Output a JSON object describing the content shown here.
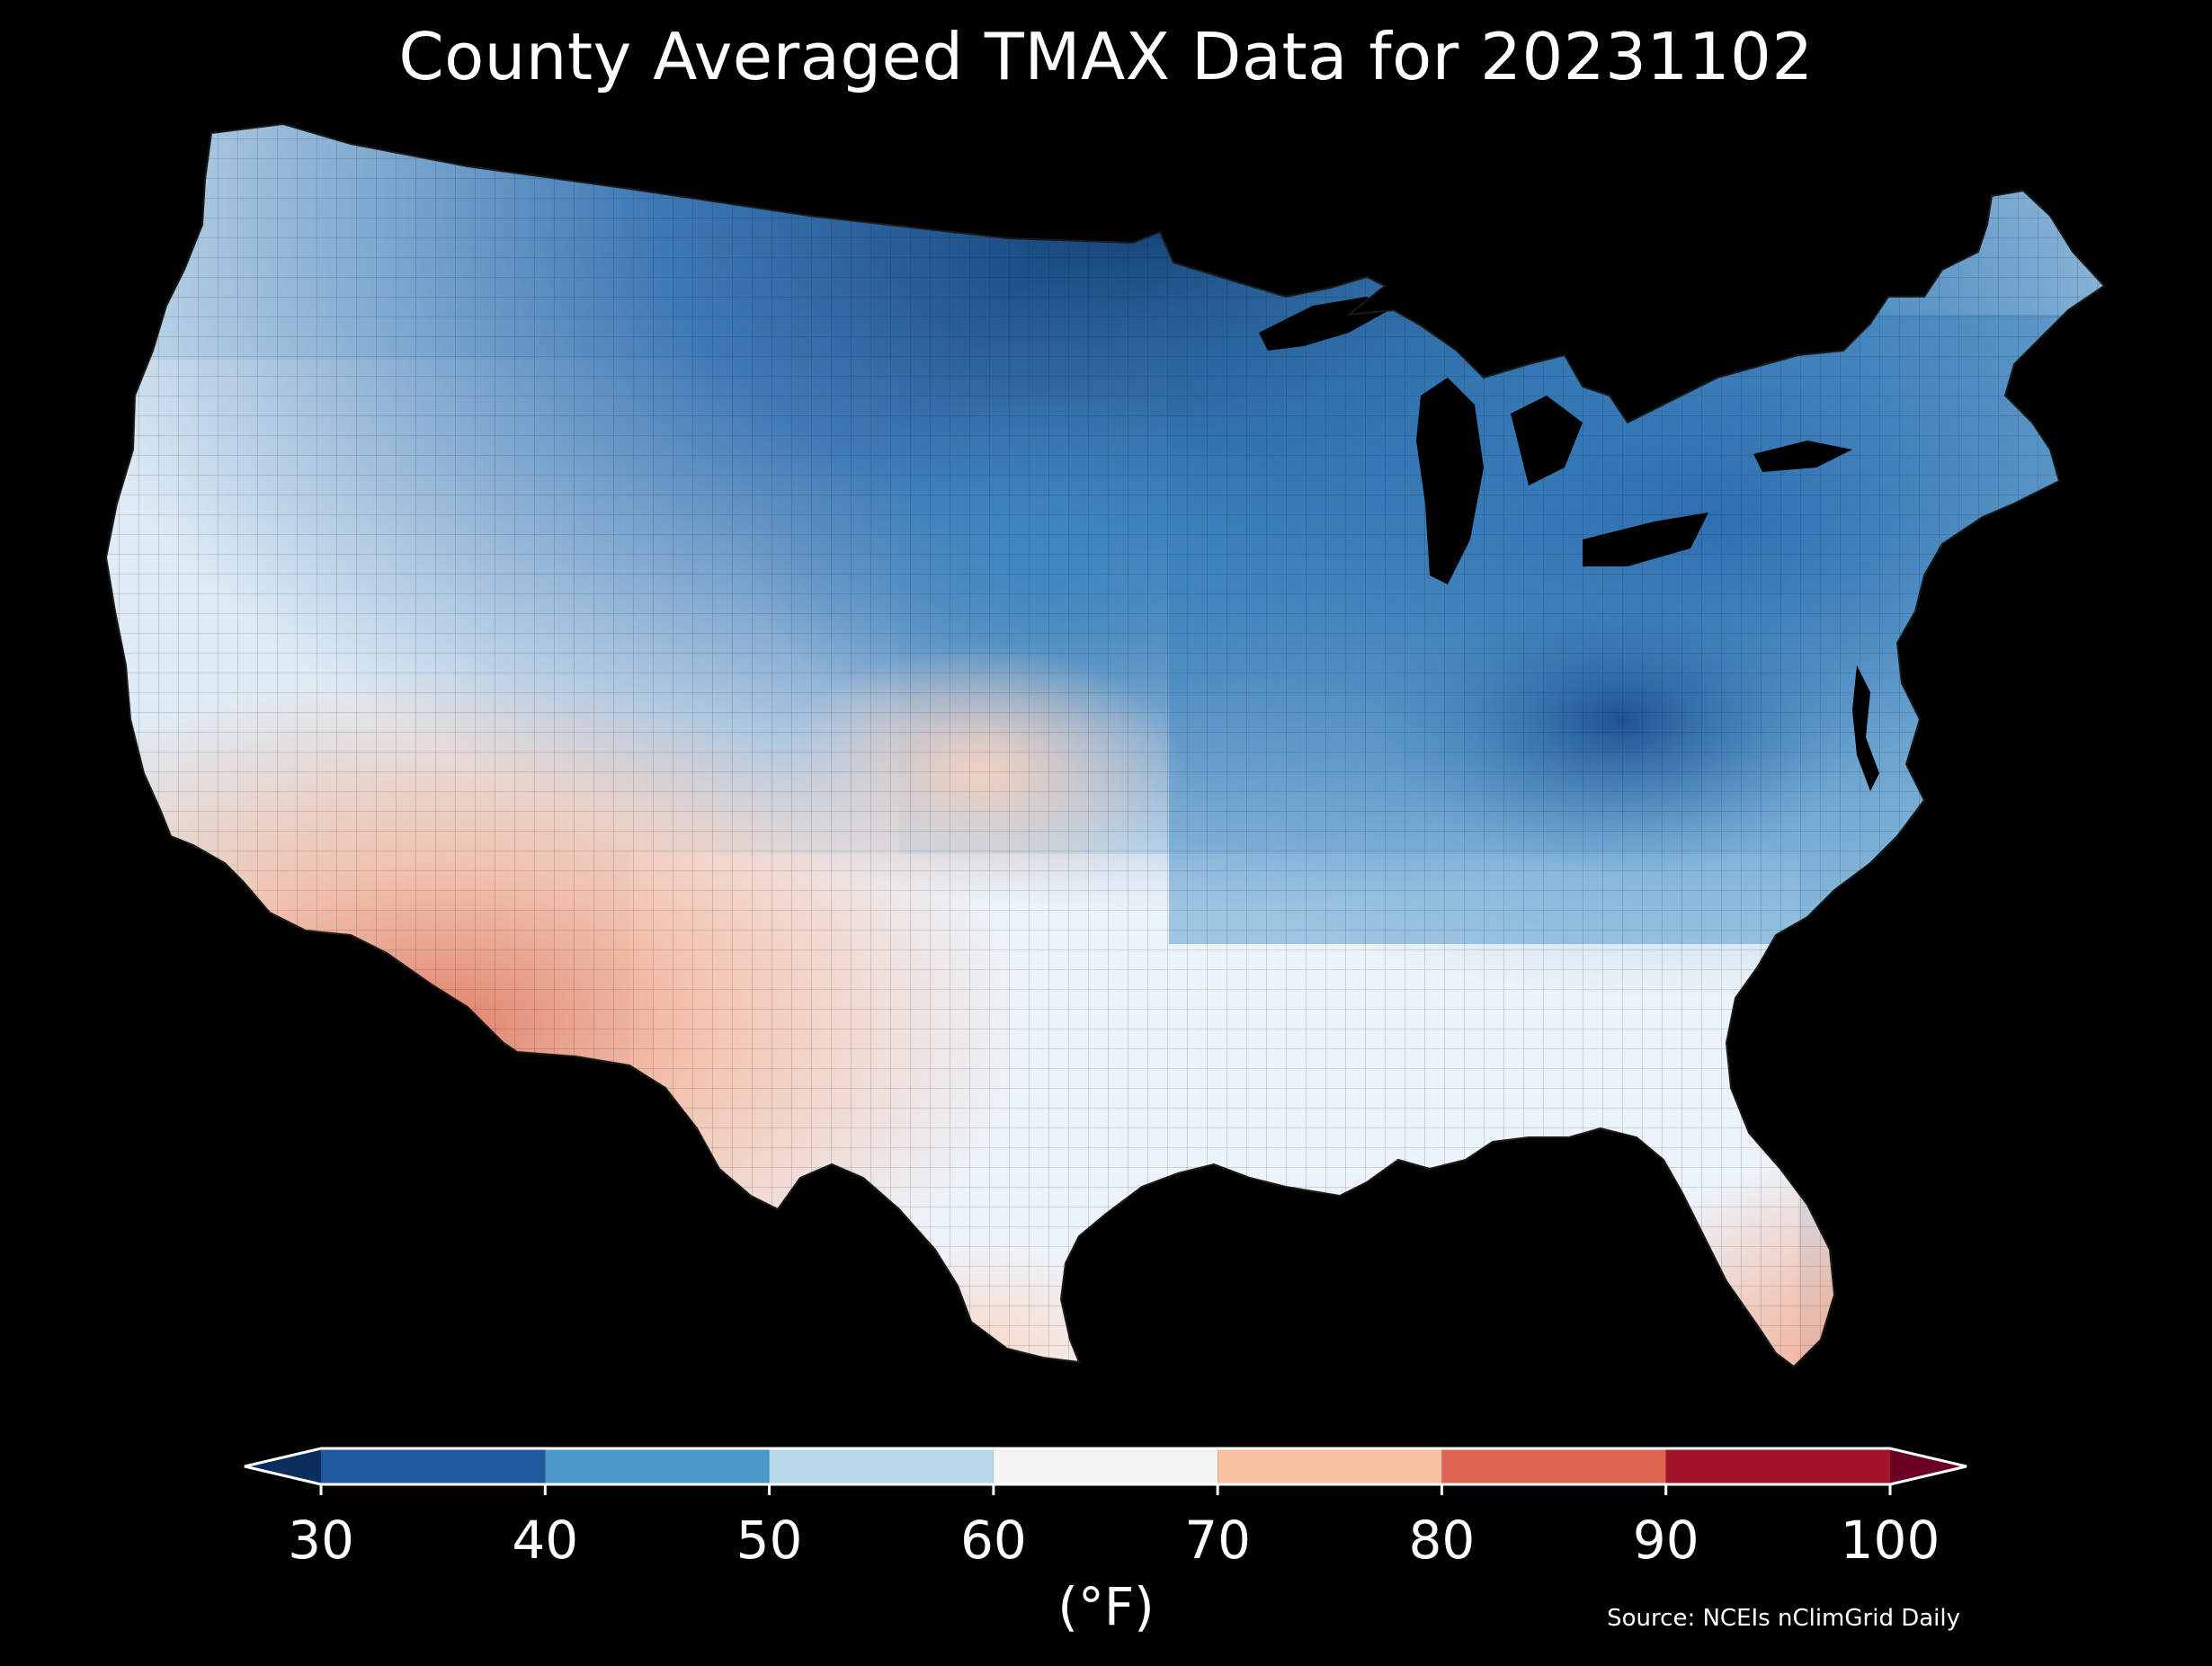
{
  "title": "County Averaged TMAX Data for 20231102",
  "colorbar": {
    "unit_label": "(°F)",
    "ticks": [
      "30",
      "40",
      "50",
      "60",
      "70",
      "80",
      "90",
      "100"
    ],
    "bins": [
      {
        "min": 30,
        "max": 40,
        "color": "#1f5a9c"
      },
      {
        "min": 40,
        "max": 50,
        "color": "#4a98c8"
      },
      {
        "min": 50,
        "max": 60,
        "color": "#b7d7ea"
      },
      {
        "min": 60,
        "max": 70,
        "color": "#f4f4f4"
      },
      {
        "min": 70,
        "max": 80,
        "color": "#f8c1a4"
      },
      {
        "min": 80,
        "max": 90,
        "color": "#dd6552"
      },
      {
        "min": 90,
        "max": 100,
        "color": "#a31428"
      }
    ],
    "under_color": "#0b2e5e",
    "over_color": "#6b0020",
    "outline_color": "#ffffff"
  },
  "source": "Source: NCEIs nClimGrid Daily",
  "map": {
    "background_color": "#000000",
    "outline_color": "#000000"
  }
}
